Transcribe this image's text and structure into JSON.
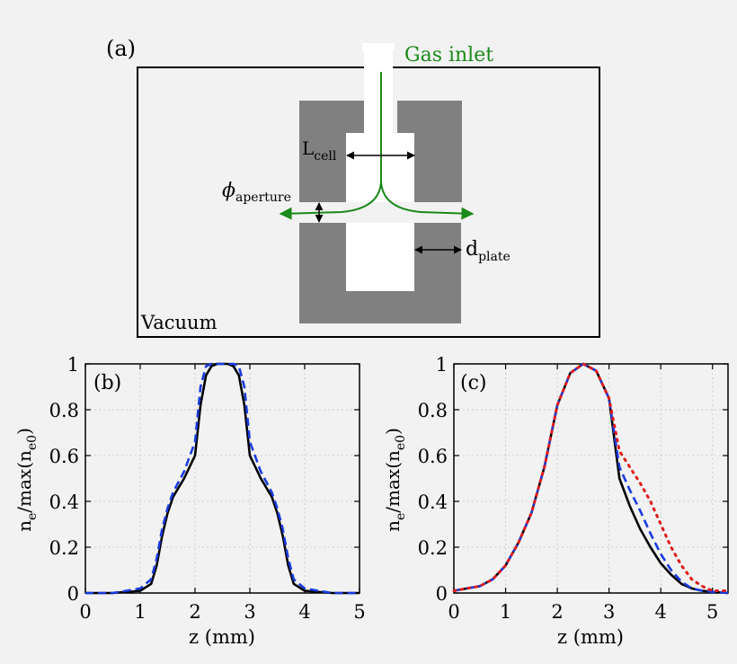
{
  "panel_a": {
    "label": "(a)",
    "gas_inlet": "Gas inlet",
    "l_cell_main": "L",
    "l_cell_sub": "cell",
    "phi_symbol": "ϕ",
    "phi_sub": "aperture",
    "d_plate_main": "d",
    "d_plate_sub": "plate",
    "vacuum": "Vacuum",
    "colors": {
      "block": "#808080",
      "flow": "#1a8a1a",
      "text": "#000000"
    }
  },
  "chart_data": [
    {
      "type": "line",
      "panel_label": "(b)",
      "xlabel": "z (mm)",
      "ylabel_main": "n",
      "ylabel_sub1": "e",
      "ylabel_mid": "/max(n",
      "ylabel_sub2": "e0",
      "ylabel_end": ")",
      "xlim": [
        0,
        5
      ],
      "ylim": [
        0,
        1
      ],
      "xticks": [
        0,
        1,
        2,
        3,
        4,
        5
      ],
      "yticks": [
        0,
        0.2,
        0.4,
        0.6,
        0.8,
        1
      ],
      "ytick_labels": [
        "0",
        "0.2",
        "0.4",
        "0.6",
        "0.8",
        "1"
      ],
      "grid": true,
      "series": [
        {
          "name": "solid",
          "color": "#000000",
          "style": "solid",
          "x": [
            0,
            0.5,
            1.0,
            1.2,
            1.3,
            1.4,
            1.5,
            1.6,
            1.8,
            2.0,
            2.1,
            2.2,
            2.3,
            2.4,
            2.5,
            2.6,
            2.7,
            2.8,
            2.9,
            3.0,
            3.2,
            3.4,
            3.5,
            3.6,
            3.7,
            3.8,
            4.0,
            4.5,
            5.0
          ],
          "y": [
            0,
            0,
            0.01,
            0.04,
            0.12,
            0.25,
            0.35,
            0.42,
            0.5,
            0.6,
            0.82,
            0.95,
            0.99,
            1.0,
            1.0,
            1.0,
            0.99,
            0.95,
            0.82,
            0.6,
            0.5,
            0.42,
            0.35,
            0.25,
            0.12,
            0.04,
            0.01,
            0,
            0
          ]
        },
        {
          "name": "dashed",
          "color": "#1a3be0",
          "style": "dashed",
          "x": [
            0,
            0.5,
            1.0,
            1.2,
            1.3,
            1.4,
            1.5,
            1.6,
            1.8,
            2.0,
            2.1,
            2.2,
            2.3,
            2.4,
            2.5,
            2.6,
            2.7,
            2.8,
            2.9,
            3.0,
            3.2,
            3.4,
            3.5,
            3.6,
            3.7,
            3.8,
            4.0,
            4.5,
            5.0
          ],
          "y": [
            0,
            0,
            0.02,
            0.06,
            0.15,
            0.28,
            0.37,
            0.44,
            0.53,
            0.66,
            0.9,
            0.99,
            1.0,
            1.0,
            1.0,
            1.0,
            1.0,
            0.99,
            0.9,
            0.66,
            0.53,
            0.44,
            0.37,
            0.28,
            0.15,
            0.06,
            0.02,
            0,
            0
          ]
        }
      ]
    },
    {
      "type": "line",
      "panel_label": "(c)",
      "xlabel": "z (mm)",
      "ylabel_main": "n",
      "ylabel_sub1": "e",
      "ylabel_mid": "/max(n",
      "ylabel_sub2": "e0",
      "ylabel_end": ")",
      "xlim": [
        0,
        5.3
      ],
      "ylim": [
        0,
        1
      ],
      "xticks": [
        0,
        1,
        2,
        3,
        4,
        5
      ],
      "yticks": [
        0,
        0.2,
        0.4,
        0.6,
        0.8,
        1
      ],
      "ytick_labels": [
        "0",
        "0.2",
        "0.4",
        "0.6",
        "0.8",
        "1"
      ],
      "grid": true,
      "series": [
        {
          "name": "solid",
          "color": "#000000",
          "style": "solid",
          "x": [
            0,
            0.25,
            0.5,
            0.75,
            1.0,
            1.25,
            1.5,
            1.75,
            2.0,
            2.25,
            2.5,
            2.75,
            3.0,
            3.2,
            3.4,
            3.6,
            3.8,
            4.0,
            4.2,
            4.4,
            4.6,
            4.8,
            5.0,
            5.3
          ],
          "y": [
            0.01,
            0.02,
            0.03,
            0.06,
            0.12,
            0.22,
            0.35,
            0.55,
            0.82,
            0.96,
            1.0,
            0.97,
            0.85,
            0.5,
            0.38,
            0.28,
            0.2,
            0.13,
            0.08,
            0.04,
            0.02,
            0.01,
            0.005,
            0
          ]
        },
        {
          "name": "dashed",
          "color": "#1a3be0",
          "style": "dashed",
          "x": [
            0,
            0.25,
            0.5,
            0.75,
            1.0,
            1.25,
            1.5,
            1.75,
            2.0,
            2.25,
            2.5,
            2.75,
            3.0,
            3.2,
            3.4,
            3.6,
            3.8,
            4.0,
            4.2,
            4.4,
            4.6,
            4.8,
            5.0,
            5.3
          ],
          "y": [
            0.01,
            0.02,
            0.03,
            0.06,
            0.12,
            0.22,
            0.35,
            0.55,
            0.82,
            0.96,
            1.0,
            0.97,
            0.85,
            0.55,
            0.45,
            0.36,
            0.26,
            0.17,
            0.1,
            0.05,
            0.02,
            0.01,
            0.005,
            0
          ]
        },
        {
          "name": "dotted",
          "color": "#e01a1a",
          "style": "dotted",
          "x": [
            0,
            0.25,
            0.5,
            0.75,
            1.0,
            1.25,
            1.5,
            1.75,
            2.0,
            2.25,
            2.5,
            2.75,
            3.0,
            3.2,
            3.4,
            3.6,
            3.8,
            4.0,
            4.2,
            4.4,
            4.6,
            4.8,
            5.0,
            5.3
          ],
          "y": [
            0.01,
            0.02,
            0.03,
            0.06,
            0.12,
            0.22,
            0.35,
            0.55,
            0.82,
            0.96,
            1.0,
            0.97,
            0.85,
            0.62,
            0.55,
            0.48,
            0.4,
            0.3,
            0.2,
            0.12,
            0.06,
            0.03,
            0.01,
            0.01
          ]
        }
      ]
    }
  ]
}
